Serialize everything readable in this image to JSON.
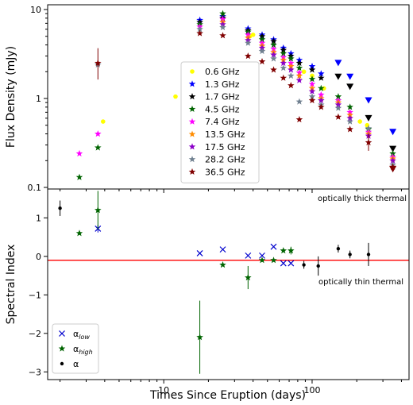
{
  "chart_data": [
    {
      "type": "scatter",
      "panel": "top",
      "ylabel": "Flux Density (mJy)",
      "xlabel": "",
      "xscale": "log",
      "yscale": "log",
      "xlim": [
        1.65,
        450
      ],
      "ylim": [
        0.1,
        10
      ],
      "ytick_labels": [
        "0.1",
        "1",
        "10"
      ],
      "legend": {
        "placement": "center",
        "entries": [
          "0.6 GHz",
          "1.3 GHz",
          "1.7 GHz",
          "4.5 GHz",
          "7.4 GHz",
          "13.5 GHz",
          "17.5 GHz",
          "28.2 GHz",
          "36.5 GHz"
        ]
      },
      "series": [
        {
          "name": "0.6 GHz",
          "color": "#ffff00",
          "marker": "circle",
          "points": [
            [
              3.9,
              0.55
            ],
            [
              12,
              1.05
            ],
            [
              38,
              5.0
            ],
            [
              40,
              5.2
            ],
            [
              88,
              2.0
            ],
            [
              100,
              1.8
            ],
            [
              120,
              1.3
            ],
            [
              210,
              0.55
            ],
            [
              235,
              0.5
            ]
          ],
          "limits": []
        },
        {
          "name": "1.3 GHz",
          "color": "#0000ff",
          "marker": "star",
          "points": [
            [
              17.5,
              7.6
            ],
            [
              25,
              8.4
            ],
            [
              37,
              6.1
            ],
            [
              46,
              5.2
            ],
            [
              55,
              4.6
            ],
            [
              64,
              3.7
            ],
            [
              72,
              3.2
            ],
            [
              82,
              2.7
            ],
            [
              100,
              2.3
            ],
            [
              115,
              1.9
            ]
          ],
          "limits": [
            [
              150,
              2.5
            ],
            [
              180,
              1.75
            ],
            [
              240,
              0.95
            ],
            [
              350,
              0.42
            ]
          ]
        },
        {
          "name": "1.7 GHz",
          "color": "#000000",
          "marker": "star",
          "points": [
            [
              17.5,
              7.2
            ],
            [
              25,
              8.0
            ],
            [
              37,
              5.8
            ],
            [
              46,
              5.0
            ],
            [
              55,
              4.4
            ],
            [
              64,
              3.5
            ],
            [
              72,
              3.0
            ],
            [
              82,
              2.5
            ],
            [
              100,
              2.1
            ],
            [
              115,
              1.7
            ]
          ],
          "limits": [
            [
              150,
              1.75
            ],
            [
              180,
              1.35
            ],
            [
              240,
              0.6
            ],
            [
              350,
              0.27
            ]
          ]
        },
        {
          "name": "4.5 GHz",
          "color": "#006400",
          "marker": "star",
          "points": [
            [
              2.7,
              0.13
            ],
            [
              3.6,
              0.28
            ],
            [
              17.5,
              6.8
            ],
            [
              25,
              9.0
            ],
            [
              37,
              5.6
            ],
            [
              46,
              4.6
            ],
            [
              55,
              4.0
            ],
            [
              64,
              3.2
            ],
            [
              72,
              2.8
            ],
            [
              82,
              2.2
            ],
            [
              100,
              1.65
            ],
            [
              115,
              1.3
            ],
            [
              150,
              1.05
            ],
            [
              180,
              0.8
            ],
            [
              240,
              0.45
            ],
            [
              350,
              0.24
            ]
          ],
          "limits": []
        },
        {
          "name": "7.4 GHz",
          "color": "#ff00ff",
          "marker": "star",
          "points": [
            [
              2.7,
              0.24
            ],
            [
              3.6,
              0.4
            ],
            [
              17.5,
              6.4
            ],
            [
              25,
              7.8
            ],
            [
              37,
              5.2
            ],
            [
              46,
              4.2
            ],
            [
              55,
              3.6
            ],
            [
              64,
              2.9
            ],
            [
              72,
              2.5
            ],
            [
              82,
              1.95
            ],
            [
              100,
              1.45
            ],
            [
              115,
              1.1
            ],
            [
              150,
              0.95
            ],
            [
              180,
              0.7
            ],
            [
              240,
              0.42
            ],
            [
              350,
              0.22
            ]
          ],
          "limits": []
        },
        {
          "name": "13.5 GHz",
          "color": "#ff8c00",
          "marker": "star",
          "points": [
            [
              25,
              7.2
            ],
            [
              37,
              4.8
            ],
            [
              46,
              3.9
            ],
            [
              55,
              3.3
            ],
            [
              64,
              2.7
            ],
            [
              72,
              2.3
            ],
            [
              82,
              1.8
            ],
            [
              100,
              1.3
            ],
            [
              115,
              1.0
            ],
            [
              150,
              0.9
            ],
            [
              180,
              0.65
            ],
            [
              240,
              0.4
            ],
            [
              350,
              0.21
            ]
          ],
          "limits": []
        },
        {
          "name": "17.5 GHz",
          "color": "#8b00c8",
          "marker": "star",
          "points": [
            [
              25,
              6.8
            ],
            [
              37,
              4.5
            ],
            [
              46,
              3.7
            ],
            [
              55,
              3.1
            ],
            [
              64,
              2.5
            ],
            [
              72,
              2.1
            ],
            [
              82,
              1.6
            ],
            [
              100,
              1.2
            ],
            [
              115,
              0.95
            ],
            [
              150,
              0.85
            ],
            [
              180,
              0.6
            ],
            [
              240,
              0.38
            ],
            [
              350,
              0.2
            ]
          ],
          "limits": []
        },
        {
          "name": "28.2 GHz",
          "color": "#708090",
          "marker": "star",
          "points": [
            [
              3.6,
              2.4
            ],
            [
              17.5,
              6.0
            ],
            [
              25,
              6.3
            ],
            [
              37,
              4.2
            ],
            [
              46,
              3.4
            ],
            [
              55,
              2.8
            ],
            [
              64,
              2.2
            ],
            [
              72,
              1.8
            ],
            [
              82,
              0.92
            ],
            [
              100,
              1.05
            ],
            [
              115,
              0.85
            ],
            [
              150,
              0.78
            ],
            [
              180,
              0.55
            ],
            [
              240,
              0.46
            ],
            [
              350,
              0.18
            ]
          ],
          "limits": []
        },
        {
          "name": "36.5 GHz",
          "color": "#800000",
          "marker": "star",
          "points": [
            [
              3.6,
              2.5
            ],
            [
              17.5,
              5.4
            ],
            [
              25,
              5.1
            ],
            [
              37,
              3.0
            ],
            [
              46,
              2.6
            ],
            [
              55,
              2.1
            ],
            [
              64,
              1.7
            ],
            [
              72,
              1.4
            ],
            [
              82,
              0.58
            ],
            [
              100,
              0.95
            ],
            [
              115,
              0.8
            ],
            [
              150,
              0.62
            ],
            [
              180,
              0.45
            ],
            [
              240,
              0.32
            ],
            [
              350,
              0.17
            ]
          ],
          "limits": [
            [
              350,
              0.16
            ]
          ]
        }
      ]
    },
    {
      "type": "scatter",
      "panel": "bottom",
      "ylabel": "Spectral Index",
      "xlabel": "Times Since Eruption (days)",
      "xscale": "log",
      "xlim": [
        1.65,
        450
      ],
      "ylim": [
        -3.2,
        1.75
      ],
      "ytick_labels": [
        "−3",
        "−2",
        "−1",
        "0",
        "1"
      ],
      "xtick_labels": [
        "10",
        "100"
      ],
      "reference_line": {
        "y": -0.1,
        "color": "#ff0000"
      },
      "annotations": [
        "optically thick thermal",
        "optically thin thermal"
      ],
      "legend": {
        "placement": "lower-left",
        "entries": [
          "α",
          "α",
          "α"
        ],
        "subscripts": [
          "low",
          "high",
          ""
        ]
      },
      "series": [
        {
          "name": "α_low",
          "color": "#0000cd",
          "marker": "x",
          "points": [
            [
              3.6,
              0.72,
              0.1
            ],
            [
              17.5,
              0.08,
              0
            ],
            [
              25,
              0.18,
              0
            ],
            [
              37,
              0.02,
              0
            ],
            [
              46,
              0.02,
              0
            ],
            [
              55,
              0.25,
              0
            ],
            [
              64,
              -0.18,
              0
            ],
            [
              72,
              -0.18,
              0
            ]
          ]
        },
        {
          "name": "α_high",
          "color": "#006400",
          "marker": "star",
          "points": [
            [
              2.7,
              0.6,
              0
            ],
            [
              3.6,
              1.2,
              0.5
            ],
            [
              17.5,
              -2.1,
              0.95
            ],
            [
              25,
              -0.22,
              0
            ],
            [
              37,
              -0.55,
              0.3
            ],
            [
              46,
              -0.1,
              0
            ],
            [
              55,
              -0.1,
              0
            ],
            [
              64,
              0.15,
              0
            ],
            [
              72,
              0.15,
              0.1
            ]
          ]
        },
        {
          "name": "α",
          "color": "#000000",
          "marker": "dot",
          "points": [
            [
              2,
              1.25,
              0.2
            ],
            [
              88,
              -0.22,
              0.1
            ],
            [
              110,
              -0.25,
              0.25
            ],
            [
              150,
              0.2,
              0.1
            ],
            [
              180,
              0.05,
              0.1
            ],
            [
              240,
              0.05,
              0.3
            ]
          ]
        }
      ]
    }
  ]
}
